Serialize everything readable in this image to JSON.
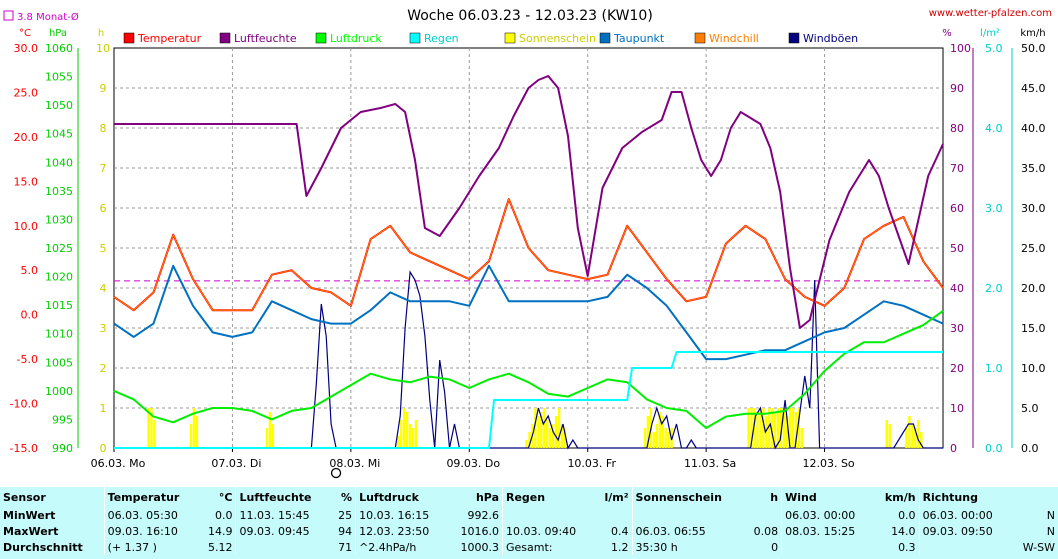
{
  "chart_data": {
    "type": "line",
    "title": "Woche 06.03.23 - 12.03.23 (KW10)",
    "source": "www.wetter-pfalzen.com",
    "x_range": [
      0,
      168
    ],
    "x_tick_labels": [
      "06.03. Mo",
      "07.03. Di",
      "08.03. Mi",
      "09.03. Do",
      "10.03. Fr",
      "11.03. Sa",
      "12.03. So"
    ],
    "monthly_avg_label": "3.8 Monat-Ø",
    "monthly_avg_value": 3.8,
    "axes": {
      "temp": {
        "unit": "°C",
        "range": [
          -15,
          30
        ],
        "ticks": [
          "30.0",
          "25.0",
          "20.0",
          "15.0",
          "10.0",
          "5.0",
          "0.0",
          "-5.0",
          "-10.0",
          "-15.0"
        ],
        "color": "#ff0000"
      },
      "pressure": {
        "unit": "hPa",
        "range": [
          990,
          1060
        ],
        "ticks": [
          "1060",
          "1055",
          "1050",
          "1045",
          "1040",
          "1035",
          "1030",
          "1025",
          "1020",
          "1015",
          "1010",
          "1005",
          "1000",
          "995",
          "990"
        ],
        "color": "#00cc00"
      },
      "sun": {
        "unit": "h",
        "range": [
          0,
          10
        ],
        "ticks": [
          "10",
          "9",
          "8",
          "7",
          "6",
          "5",
          "4",
          "3",
          "2",
          "1",
          "0"
        ],
        "color": "#cccc00"
      },
      "humidity": {
        "unit": "%",
        "range": [
          0,
          100
        ],
        "ticks": [
          "100",
          "90",
          "80",
          "70",
          "60",
          "50",
          "40",
          "30",
          "20",
          "10",
          "0"
        ],
        "color": "#800080"
      },
      "rain": {
        "unit": "l/m²",
        "range": [
          0,
          5
        ],
        "ticks": [
          "5.0",
          "4.0",
          "3.0",
          "2.0",
          "1.0",
          "0.0"
        ],
        "color": "#00cccc"
      },
      "wind": {
        "unit": "km/h",
        "range": [
          0,
          50
        ],
        "ticks": [
          "50.0",
          "45.0",
          "40.0",
          "35.0",
          "30.0",
          "25.0",
          "20.0",
          "15.0",
          "10.0",
          "5.0",
          "0.0"
        ],
        "color": "#000000"
      }
    },
    "legend": [
      {
        "name": "Temperatur",
        "color": "#ff0000"
      },
      {
        "name": "Luftfeuchte",
        "color": "#800080"
      },
      {
        "name": "Luftdruck",
        "color": "#00ff00"
      },
      {
        "name": "Regen",
        "color": "#00ffff"
      },
      {
        "name": "Sonnenschein",
        "color": "#ffff00"
      },
      {
        "name": "Taupunkt",
        "color": "#0070c0"
      },
      {
        "name": "Windchill",
        "color": "#ff8000"
      },
      {
        "name": "Windböen",
        "color": "#000080"
      }
    ],
    "series": [
      {
        "name": "Temperatur",
        "axis": "temp",
        "color": "#ff0000",
        "x": [
          0,
          4,
          8,
          12,
          16,
          20,
          24,
          28,
          32,
          36,
          40,
          44,
          48,
          52,
          56,
          60,
          64,
          68,
          72,
          76,
          80,
          84,
          88,
          92,
          96,
          100,
          104,
          108,
          112,
          116,
          120,
          124,
          128,
          132,
          136,
          140,
          144,
          148,
          152,
          156,
          160,
          164,
          168
        ],
        "y": [
          2.0,
          0.5,
          2.5,
          9.0,
          4.0,
          0.5,
          0.5,
          0.5,
          4.5,
          5.0,
          3.0,
          2.5,
          1.0,
          8.5,
          10.0,
          7.0,
          6.0,
          5.0,
          4.0,
          6.0,
          13.0,
          7.5,
          5.0,
          4.5,
          4.0,
          4.5,
          10.0,
          7.0,
          4.0,
          1.5,
          2.0,
          8.0,
          10.0,
          8.5,
          4.0,
          2.0,
          1.0,
          3.0,
          8.5,
          10.0,
          11.0,
          6.0,
          3.0
        ]
      },
      {
        "name": "Taupunkt",
        "axis": "temp",
        "color": "#0070c0",
        "x": [
          0,
          4,
          8,
          12,
          16,
          20,
          24,
          28,
          32,
          36,
          40,
          44,
          48,
          52,
          56,
          60,
          64,
          68,
          72,
          76,
          80,
          84,
          88,
          92,
          96,
          100,
          104,
          108,
          112,
          116,
          120,
          124,
          128,
          132,
          136,
          140,
          144,
          148,
          152,
          156,
          160,
          164,
          168
        ],
        "y": [
          -1.0,
          -2.5,
          -1.0,
          5.5,
          1.0,
          -2.0,
          -2.5,
          -2.0,
          1.5,
          0.5,
          -0.5,
          -1.0,
          -1.0,
          0.5,
          2.5,
          1.5,
          1.5,
          1.5,
          1.0,
          5.5,
          1.5,
          1.5,
          1.5,
          1.5,
          1.5,
          2.0,
          4.5,
          3.0,
          1.0,
          -2.0,
          -5.0,
          -5.0,
          -4.5,
          -4.0,
          -4.0,
          -3.0,
          -2.0,
          -1.5,
          0.0,
          1.5,
          1.0,
          0.0,
          -1.0
        ]
      },
      {
        "name": "Windchill",
        "axis": "temp",
        "color": "#ff8000",
        "x": [
          0,
          4,
          8,
          12,
          16,
          20,
          24,
          28,
          32,
          36,
          40,
          44,
          48,
          52,
          56,
          60,
          64,
          68,
          72,
          76,
          80,
          84,
          88,
          92,
          96,
          100,
          104,
          108,
          112,
          116,
          120,
          124,
          128,
          132,
          136,
          140,
          144,
          148,
          152,
          156,
          160,
          164,
          168
        ],
        "y": [
          2.0,
          0.5,
          2.5,
          9.0,
          4.0,
          0.5,
          0.5,
          0.5,
          4.5,
          5.0,
          3.0,
          2.5,
          1.0,
          8.5,
          10.0,
          7.0,
          6.0,
          5.0,
          4.0,
          6.0,
          13.0,
          7.5,
          5.0,
          4.5,
          4.0,
          4.5,
          10.0,
          7.0,
          4.0,
          1.5,
          2.0,
          8.0,
          10.0,
          8.5,
          4.0,
          2.0,
          1.0,
          3.0,
          8.5,
          10.0,
          11.0,
          6.0,
          3.0
        ]
      },
      {
        "name": "Luftfeuchte",
        "axis": "humidity",
        "color": "#800080",
        "x": [
          0,
          37,
          39,
          42,
          46,
          50,
          54,
          57,
          59,
          61,
          63,
          66,
          70,
          74,
          78,
          81,
          84,
          86,
          88,
          90,
          92,
          94,
          96,
          99,
          103,
          107,
          111,
          113,
          115,
          117,
          119,
          121,
          123,
          125,
          127,
          131,
          133,
          135,
          137,
          139,
          141,
          143,
          145,
          149,
          153,
          155,
          157,
          159,
          161,
          165,
          168
        ],
        "y": [
          81,
          81,
          63,
          70,
          80,
          84,
          85,
          86,
          84,
          72,
          55,
          53,
          60,
          68,
          75,
          83,
          90,
          92,
          93,
          90,
          78,
          55,
          43,
          65,
          75,
          79,
          82,
          89,
          89,
          80,
          72,
          68,
          72,
          80,
          84,
          81,
          75,
          64,
          45,
          30,
          32,
          42,
          52,
          64,
          72,
          68,
          60,
          53,
          46,
          68,
          76
        ]
      },
      {
        "name": "Luftdruck",
        "axis": "pressure",
        "color": "#00ee00",
        "x": [
          0,
          4,
          8,
          12,
          16,
          20,
          24,
          28,
          32,
          36,
          40,
          44,
          48,
          52,
          56,
          60,
          64,
          68,
          72,
          76,
          80,
          84,
          88,
          92,
          96,
          100,
          104,
          108,
          112,
          116,
          120,
          124,
          128,
          132,
          136,
          140,
          144,
          148,
          152,
          156,
          160,
          164,
          168
        ],
        "y": [
          1000,
          998.5,
          995.5,
          994.5,
          996,
          997,
          997,
          996.5,
          995,
          996.5,
          997,
          999,
          1001,
          1003,
          1002,
          1001.5,
          1002.5,
          1002,
          1000.5,
          1002,
          1003,
          1001.5,
          999.5,
          999,
          1000.5,
          1002,
          1001.5,
          998.5,
          997,
          996.5,
          993.5,
          995.5,
          996,
          996,
          996.5,
          999.5,
          1003.5,
          1006.5,
          1008.5,
          1008.5,
          1010,
          1011.5,
          1014
        ]
      },
      {
        "name": "Regen",
        "axis": "rain",
        "color": "#00ffff",
        "x": [
          0,
          76,
          77,
          80,
          104,
          105,
          113,
          114,
          168
        ],
        "y": [
          0,
          0,
          0.6,
          0.6,
          0.6,
          1.0,
          1.0,
          1.2,
          1.2
        ]
      }
    ],
    "sunshine": {
      "axis": "sun",
      "color": "#ffff00",
      "x": [
        7,
        7.6,
        8.2,
        15.6,
        16.2,
        16.8,
        31,
        31.6,
        32.2,
        57.6,
        58.2,
        58.8,
        59.4,
        60,
        60.6,
        61.2,
        83.6,
        84.2,
        84.8,
        85.4,
        86,
        86.6,
        87.2,
        87.8,
        88.4,
        89,
        89.6,
        90.2,
        90.8,
        91.4,
        107.6,
        108.2,
        108.8,
        109.4,
        110,
        110.6,
        111.2,
        111.8,
        112.4,
        113,
        128.6,
        129.2,
        129.8,
        130.4,
        131,
        131.6,
        132.2,
        132.8,
        133.4,
        134,
        134.6,
        135.2,
        135.8,
        136.4,
        137,
        137.6,
        138.2,
        138.8,
        139.4,
        156.6,
        157.2,
        160.6,
        161.2,
        161.8,
        162.4,
        163,
        163.6
      ],
      "y": [
        1.0,
        1.0,
        0.7,
        0.6,
        1.0,
        0.8,
        0.5,
        0.9,
        0.6,
        0.3,
        0.7,
        1.0,
        0.9,
        0.6,
        0.5,
        0.7,
        0.2,
        0.4,
        0.6,
        1.0,
        0.8,
        0.9,
        1.0,
        0.7,
        0.5,
        0.6,
        0.8,
        1.0,
        0.6,
        0.5,
        0.5,
        0.8,
        1.0,
        0.4,
        0.6,
        0.9,
        0.8,
        0.5,
        0.4,
        0.5,
        1.0,
        1.0,
        1.0,
        0.9,
        1.0,
        1.0,
        0.8,
        1.0,
        1.0,
        0.9,
        1.0,
        1.0,
        1.0,
        0.8,
        1.0,
        1.0,
        0.9,
        1.0,
        0.5,
        0.7,
        0.6,
        0.5,
        0.8,
        0.6,
        0.5,
        0.7,
        0.4
      ]
    },
    "windgusts": {
      "axis": "wind",
      "color": "#000080",
      "x": [
        0,
        39,
        40,
        41,
        42,
        43,
        44,
        45,
        46,
        47,
        48,
        56,
        57,
        58,
        59,
        60,
        61,
        62,
        63,
        64,
        65,
        66,
        67,
        68,
        69,
        70,
        84,
        85,
        86,
        87,
        88,
        89,
        90,
        91,
        92,
        93,
        94,
        95,
        108,
        109,
        110,
        111,
        112,
        113,
        114,
        115,
        116,
        117,
        118,
        129,
        130,
        131,
        132,
        133,
        134,
        135,
        136,
        137,
        138,
        140,
        141,
        142,
        143,
        158,
        159,
        160,
        161,
        162,
        163,
        164,
        168
      ],
      "y": [
        0,
        0,
        0,
        8,
        18,
        14,
        3,
        0,
        0,
        0,
        0,
        0,
        0,
        4,
        15,
        22,
        21,
        19,
        14,
        6,
        0,
        11,
        7,
        0,
        3,
        0,
        0,
        2,
        5,
        3,
        4,
        2,
        1,
        3,
        0,
        1,
        0,
        0,
        0,
        3,
        5,
        3,
        4,
        1,
        3,
        0,
        0,
        1,
        0,
        0,
        4,
        5,
        2,
        3,
        0,
        1,
        6,
        0,
        0,
        9,
        5,
        21,
        0,
        0,
        1,
        2,
        3,
        3,
        1,
        0,
        0
      ]
    }
  },
  "stats": {
    "headers": [
      {
        "name": "Sensor",
        "unit": ""
      },
      {
        "name": "Temperatur",
        "unit": "°C"
      },
      {
        "name": "Luftfeuchte",
        "unit": "%"
      },
      {
        "name": "Luftdruck",
        "unit": "hPa"
      },
      {
        "name": "Regen",
        "unit": "l/m²"
      },
      {
        "name": "Sonnenschein",
        "unit": "h"
      },
      {
        "name": "Wind",
        "unit": "km/h"
      },
      {
        "name": "Richtung",
        "unit": ""
      }
    ],
    "rows": [
      {
        "label": "MinWert",
        "cells": [
          [
            "06.03.  05:30",
            "0.0"
          ],
          [
            "11.03.  15:45",
            "25"
          ],
          [
            "10.03.  16:15",
            "992.6"
          ],
          [
            "",
            ""
          ],
          [
            "",
            ""
          ],
          [
            "06.03.  00:00",
            "0.0"
          ],
          [
            "06.03.  00:00",
            "N"
          ]
        ]
      },
      {
        "label": "MaxWert",
        "cells": [
          [
            "09.03.  16:10",
            "14.9"
          ],
          [
            "09.03.  09:45",
            "94"
          ],
          [
            "12.03.  23:50",
            "1016.0"
          ],
          [
            "10.03.  09:40",
            "0.4"
          ],
          [
            "06.03.  06:55",
            "0.08"
          ],
          [
            "08.03.  15:25",
            "14.0"
          ],
          [
            "09.03.  09:50",
            "N"
          ]
        ]
      },
      {
        "label": "Durchschnitt",
        "cells": [
          [
            "(+ 1.37 )",
            "5.12"
          ],
          [
            "",
            "71"
          ],
          [
            "^2.4hPa/h",
            "1000.3"
          ],
          [
            "Gesamt:",
            "1.2"
          ],
          [
            "35:30 h",
            "0"
          ],
          [
            "",
            "0.3"
          ],
          [
            "",
            "W-SW"
          ]
        ]
      }
    ]
  }
}
